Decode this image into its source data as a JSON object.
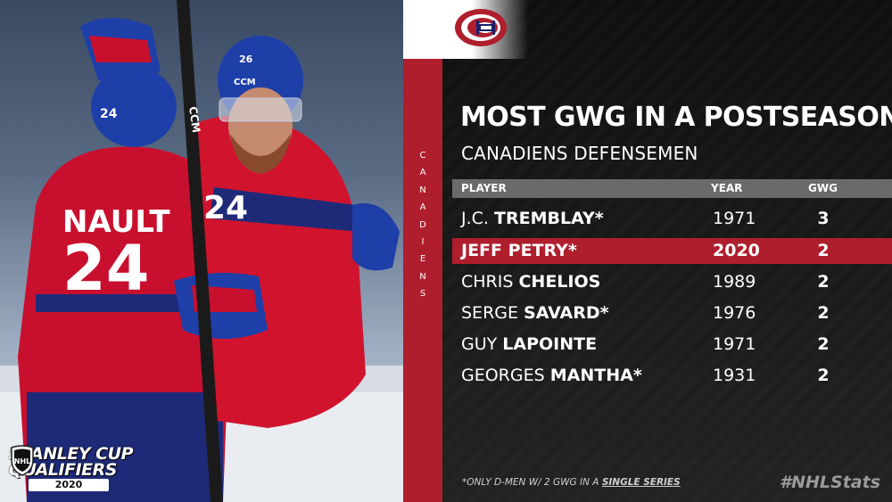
{
  "branding": {
    "team_vertical": [
      "C",
      "A",
      "N",
      "A",
      "D",
      "I",
      "E",
      "N",
      "S"
    ],
    "event_logo_line1": "STANLEY CUP",
    "event_logo_line2": "QUALIFIERS",
    "event_logo_year": "2020",
    "team_logo_icon": "canadiens-logo-icon",
    "league_logo_icon": "nhl-shield-icon"
  },
  "header": {
    "title": "MOST GWG IN A POSTSEASON",
    "subtitle": "CANADIENS DEFENSEMEN"
  },
  "table": {
    "columns": [
      "PLAYER",
      "YEAR",
      "GWG"
    ],
    "rows": [
      {
        "first": "J.C.",
        "last": "TREMBLAY*",
        "year": "1971",
        "gwg": "3",
        "highlight": false
      },
      {
        "first": "JEFF",
        "last": "PETRY*",
        "year": "2020",
        "gwg": "2",
        "highlight": true
      },
      {
        "first": "CHRIS",
        "last": "CHELIOS",
        "year": "1989",
        "gwg": "2",
        "highlight": false
      },
      {
        "first": "SERGE",
        "last": "SAVARD*",
        "year": "1976",
        "gwg": "2",
        "highlight": false
      },
      {
        "first": "GUY",
        "last": "LAPOINTE",
        "year": "1971",
        "gwg": "2",
        "highlight": false
      },
      {
        "first": "GEORGES",
        "last": "MANTHA*",
        "year": "1931",
        "gwg": "2",
        "highlight": false
      }
    ]
  },
  "footer": {
    "footnote_prefix": "*ONLY D-MEN W/ 2 GWG IN A ",
    "footnote_emphasis": "SINGLE SERIES",
    "hashtag": "#NHLStats"
  },
  "colors": {
    "canadiens_red": "#af1e2d",
    "canadiens_blue": "#192168",
    "header_gray": "#6a6a6a",
    "background": "#141414"
  }
}
